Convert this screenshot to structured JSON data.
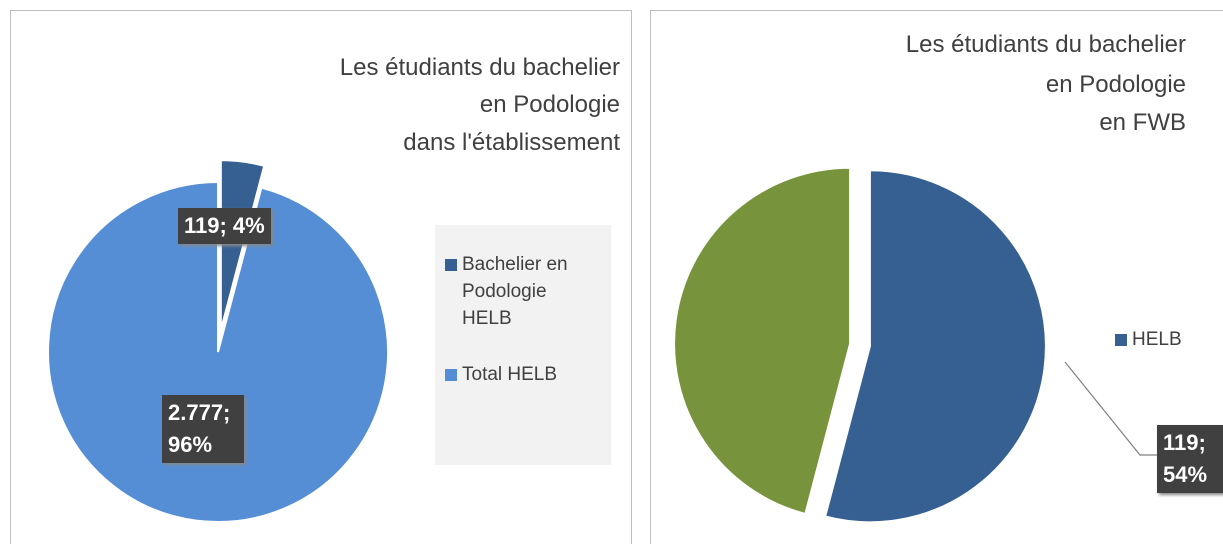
{
  "chart_data": [
    {
      "type": "pie",
      "title": [
        "Les étudiants du bachelier",
        "en Podologie",
        "dans l'établissement"
      ],
      "categories": [
        "Bachelier en Podologie HELB",
        "Total HELB"
      ],
      "values": [
        119,
        2777
      ],
      "value_labels": [
        "119; 4%",
        "2.777; 96%"
      ],
      "colors": [
        "#376092",
        "#558ed5"
      ]
    },
    {
      "type": "pie",
      "title": [
        "Les étudiants du bachelier",
        "en Podologie",
        "en FWB"
      ],
      "categories": [
        "HELB",
        null
      ],
      "values": [
        119,
        101
      ],
      "value_labels": [
        "119; 54%",
        null
      ],
      "colors": [
        "#376092",
        "#77933c"
      ]
    }
  ]
}
